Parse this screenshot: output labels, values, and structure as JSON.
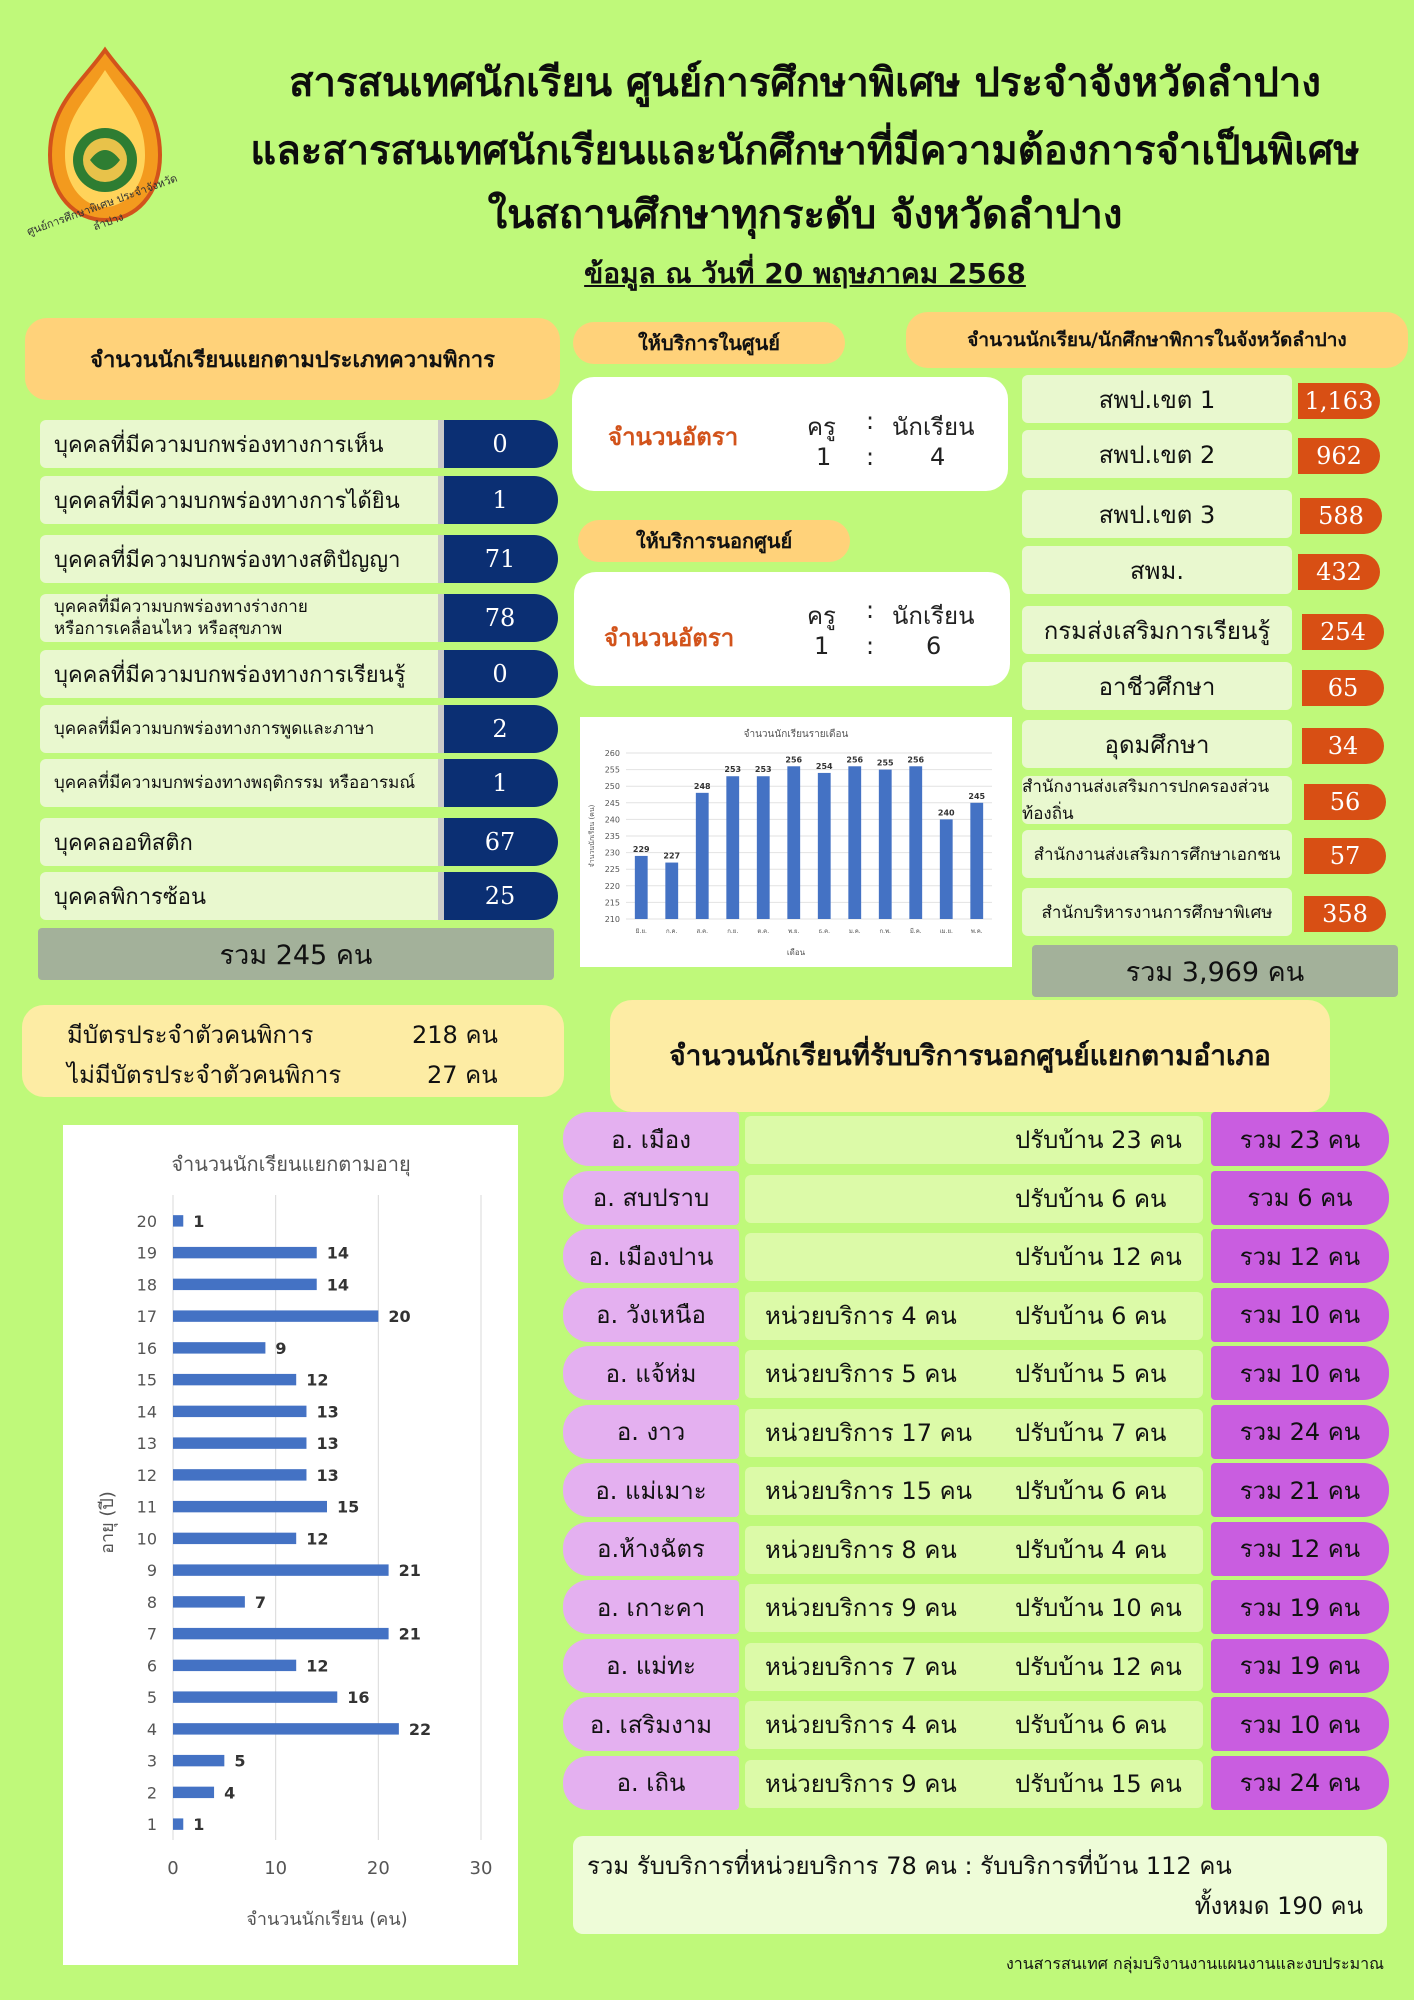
{
  "header": {
    "logo_text": "ศูนย์การศึกษาพิเศษ ประจำจังหวัดลำปาง",
    "title_lines": [
      "สารสนเทศนักเรียน ศูนย์การศึกษาพิเศษ ประจำจังหวัดลำปาง",
      "และสารสนเทศนักเรียนและนักศึกษาที่มีความต้องการจำเป็นพิเศษ",
      "ในสถานศึกษาทุกระดับ จังหวัดลำปาง"
    ],
    "date": "ข้อมูล ณ วันที่ 20 พฤษภาคม 2568"
  },
  "disability": {
    "heading": "จำนวนนักเรียนแยกตามประเภทความพิการ",
    "items": [
      {
        "label": "บุคคลที่มีความบกพร่องทางการเห็น",
        "value": "0"
      },
      {
        "label": "บุคคลที่มีความบกพร่องทางการได้ยิน",
        "value": "1"
      },
      {
        "label": "บุคคลที่มีความบกพร่องทางสติปัญญา",
        "value": "71"
      },
      {
        "label": "บุคคลที่มีความบกพร่องทางร่างกาย\nหรือการเคลื่อนไหว หรือสุขภาพ",
        "value": "78"
      },
      {
        "label": "บุคคลที่มีความบกพร่องทางการเรียนรู้",
        "value": "0"
      },
      {
        "label": "บุคคลที่มีความบกพร่องทางการพูดและภาษา",
        "value": "2"
      },
      {
        "label": "บุคคลที่มีความบกพร่องทางพฤติกรรม หรืออารมณ์",
        "value": "1"
      },
      {
        "label": "บุคคลออทิสติก",
        "value": "67"
      },
      {
        "label": "บุคคลพิการซ้อน",
        "value": "25"
      }
    ],
    "total": "รวม   245 คน"
  },
  "cards": {
    "have_card": "มีบัตรประจำตัวคนพิการ",
    "have_card_count": "218 คน",
    "no_card": "ไม่มีบัตรประจำตัวคนพิการ",
    "no_card_count": "27  คน"
  },
  "in_center": {
    "heading": "ให้บริการในศูนย์",
    "label": "จำนวนอัตรา",
    "teacher": "ครู",
    "colon": ":",
    "student": "นักเรียน",
    "teacher_n": "1",
    "student_n": "4"
  },
  "out_center": {
    "heading": "ให้บริการนอกศูนย์",
    "label": "จำนวนอัตรา",
    "teacher": "ครู",
    "colon": ":",
    "student": "นักเรียน",
    "teacher_n": "1",
    "student_n": "6"
  },
  "province": {
    "heading": "จำนวนนักเรียน/นักศึกษาพิการในจังหวัดลำปาง",
    "items": [
      {
        "label": "สพป.เขต 1",
        "value": "1,163"
      },
      {
        "label": "สพป.เขต 2",
        "value": "962"
      },
      {
        "label": "สพป.เขต 3",
        "value": "588"
      },
      {
        "label": "สพม.",
        "value": "432"
      },
      {
        "label": "กรมส่งเสริมการเรียนรู้",
        "value": "254"
      },
      {
        "label": "อาชีวศึกษา",
        "value": "65"
      },
      {
        "label": "อุดมศึกษา",
        "value": "34"
      },
      {
        "label": "สำนักงานส่งเสริมการปกครองส่วนท้องถิ่น",
        "value": "56"
      },
      {
        "label": "สำนักงานส่งเสริมการศึกษาเอกชน",
        "value": "57"
      },
      {
        "label": "สำนักบริหารงานการศึกษาพิเศษ",
        "value": "358"
      }
    ],
    "total": "รวม 3,969 คน"
  },
  "districts": {
    "heading": "จำนวนนักเรียนที่รับบริการนอกศูนย์แยกตามอำเภอ",
    "items": [
      {
        "name": "อ. เมือง",
        "unit": "",
        "home": "ปรับบ้าน 23 คน",
        "total": "รวม   23 คน"
      },
      {
        "name": "อ. สบปราบ",
        "unit": "",
        "home": "ปรับบ้าน 6 คน",
        "total": "รวม   6 คน"
      },
      {
        "name": "อ. เมืองปาน",
        "unit": "",
        "home": "ปรับบ้าน 12 คน",
        "total": "รวม   12 คน"
      },
      {
        "name": "อ. วังเหนือ",
        "unit": "หน่วยบริการ 4 คน",
        "home": "ปรับบ้าน 6 คน",
        "total": "รวม   10 คน"
      },
      {
        "name": "อ. แจ้ห่ม",
        "unit": "หน่วยบริการ  5 คน",
        "home": "ปรับบ้าน  5 คน",
        "total": "รวม   10 คน"
      },
      {
        "name": "อ. งาว",
        "unit": "หน่วยบริการ 17 คน",
        "home": "ปรับบ้าน  7 คน",
        "total": "รวม   24 คน"
      },
      {
        "name": "อ. แม่เมาะ",
        "unit": "หน่วยบริการ 15 คน",
        "home": "ปรับบ้าน  6 คน",
        "total": "รวม   21 คน"
      },
      {
        "name": "อ.ห้างฉัตร",
        "unit": "หน่วยบริการ  8 คน",
        "home": "ปรับบ้าน  4 คน",
        "total": "รวม   12 คน"
      },
      {
        "name": "อ. เกาะคา",
        "unit": "หน่วยบริการ  9 คน",
        "home": "ปรับบ้าน  10 คน",
        "total": "รวม   19 คน"
      },
      {
        "name": "อ. แม่ทะ",
        "unit": "หน่วยบริการ 7 คน",
        "home": "ปรับบ้าน 12 คน",
        "total": "รวม  19 คน"
      },
      {
        "name": "อ. เสริมงาม",
        "unit": "หน่วยบริการ 4 คน",
        "home": "ปรับบ้าน  6 คน",
        "total": "รวม   10 คน"
      },
      {
        "name": "อ. เถิน",
        "unit": "หน่วยบริการ 9 คน",
        "home": "ปรับบ้าน  15 คน",
        "total": "รวม   24 คน"
      }
    ],
    "summary_line1": "รวม รับบริการที่หน่วยบริการ 78 คน : รับบริการที่บ้าน 112 คน",
    "summary_line2": "ทั้งหมด 190 คน"
  },
  "footer": "งานสารสนเทศ กลุ่มบริงานงานแผนงานและงบประมาณ",
  "colors": {
    "background": "#bff97a",
    "navy_value": "#0b2f73",
    "orange_value": "#d84f14",
    "district_name": "#e4b0f0",
    "district_total": "#c95de0",
    "bar_blue": "#4472c4"
  },
  "chart_data": [
    {
      "type": "bar",
      "title": "จำนวนนักเรียนรายเดือน",
      "xlabel": "เดือน",
      "ylabel": "จำนวนนักเรียน (คน)",
      "categories": [
        "มิ.ย.",
        "ก.ค.",
        "ส.ค.",
        "ก.ย.",
        "ต.ค.",
        "พ.ย.",
        "ธ.ค.",
        "ม.ค.",
        "ก.พ.",
        "มี.ค.",
        "เม.ย.",
        "พ.ค."
      ],
      "values": [
        229,
        227,
        248,
        253,
        253,
        256,
        254,
        256,
        255,
        256,
        240,
        245
      ],
      "ylim": [
        210,
        260
      ],
      "yticks": [
        210,
        215,
        220,
        225,
        230,
        235,
        240,
        245,
        250,
        255,
        260
      ],
      "grid": true
    },
    {
      "type": "bar",
      "orientation": "horizontal",
      "title": "จำนวนนักเรียนแยกตามอายุ",
      "xlabel": "จำนวนนักเรียน (คน)",
      "ylabel": "อายุ (ปี)",
      "categories": [
        "1",
        "2",
        "3",
        "4",
        "5",
        "6",
        "7",
        "8",
        "9",
        "10",
        "11",
        "12",
        "13",
        "14",
        "15",
        "16",
        "17",
        "18",
        "19",
        "20"
      ],
      "values": [
        1,
        4,
        5,
        22,
        16,
        12,
        21,
        7,
        21,
        12,
        15,
        13,
        13,
        13,
        12,
        9,
        20,
        14,
        14,
        1
      ],
      "xlim": [
        0,
        30
      ],
      "xticks": [
        0,
        10,
        20,
        30
      ],
      "grid": true
    }
  ]
}
